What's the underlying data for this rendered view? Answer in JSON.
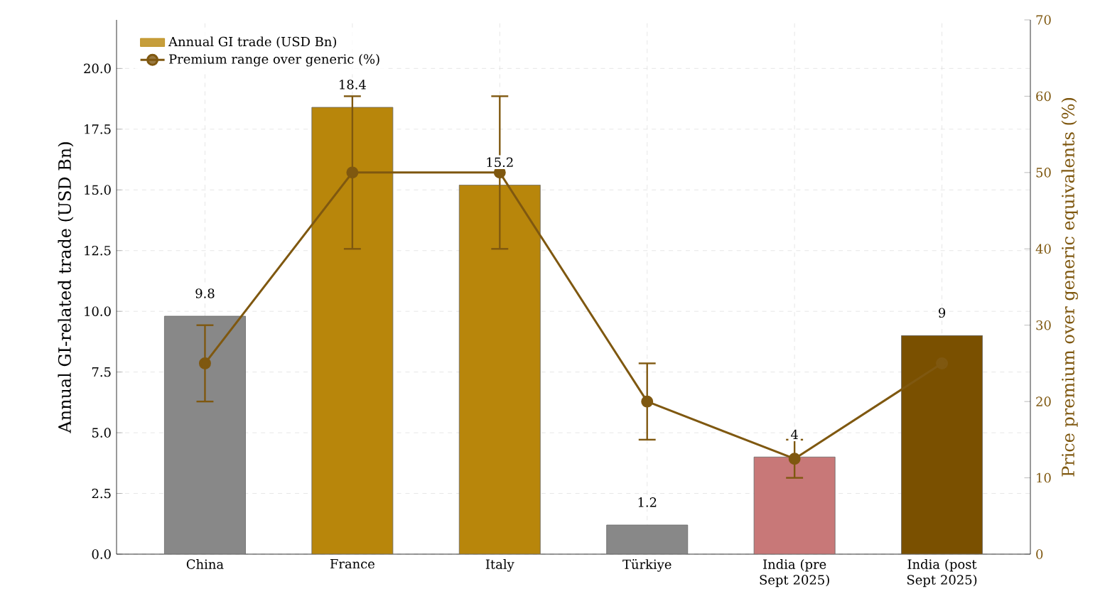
{
  "chart_data": {
    "type": "bar",
    "categories": [
      "China",
      "France",
      "Italy",
      "Türkiye",
      "India (pre Sept 2025)",
      "India (post Sept 2025)"
    ],
    "ylabel": "Annual GI-related trade (USD Bn)",
    "y2label": "Price premium over generic equivalents (%)",
    "ylim": [
      0,
      22
    ],
    "yticks": [
      {
        "value": 0,
        "label": "0.0"
      },
      2.5,
      {
        "value": 5,
        "label": "5.0"
      },
      7.5,
      {
        "value": 10,
        "label": "10.0"
      },
      12.5,
      {
        "value": 15,
        "label": "15.0"
      },
      17.5,
      {
        "value": 20,
        "label": "20.0"
      }
    ],
    "y2lim": [
      0,
      70
    ],
    "y2ticks": [
      0,
      10,
      20,
      30,
      40,
      50,
      60,
      70
    ],
    "grid": true,
    "legend": "top left",
    "series": [
      {
        "name": "Annual GI trade (USD Bn)",
        "type": "bar",
        "color": "#b8860b",
        "colors": [
          "#888888",
          "#b8860b",
          "#b8860b",
          "#888888",
          "#c87878",
          "#7a5000"
        ],
        "values": [
          9.8,
          18.4,
          15.2,
          1.2,
          4,
          9
        ],
        "value_labels": [
          "9.8",
          "18.4",
          "15.2",
          "1.2",
          "4",
          "9"
        ]
      },
      {
        "name": "Premium range over generic (%)",
        "type": "line",
        "axis": "y2",
        "color": "#7f5810",
        "marker": "circle",
        "values": [
          25,
          50,
          50,
          20,
          12.5,
          25
        ],
        "errors": [
          5,
          10,
          10,
          5,
          2.5,
          null
        ]
      }
    ]
  }
}
